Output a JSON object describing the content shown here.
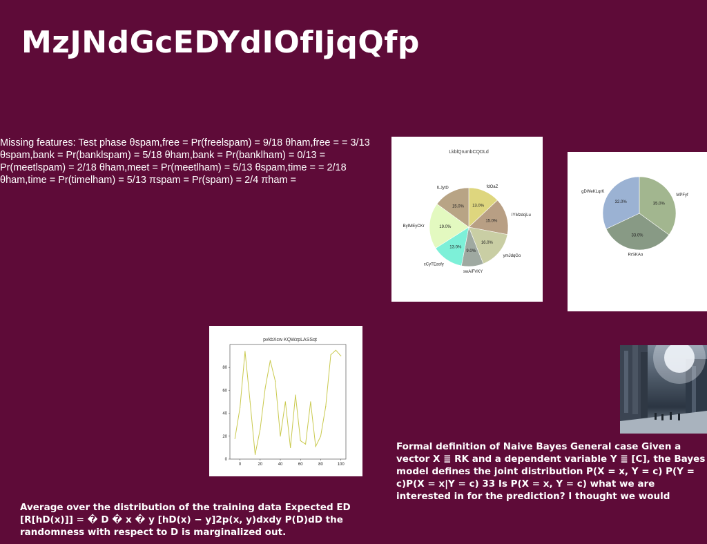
{
  "slide": {
    "title": "MzJNdGcEDYdIOfIjqQfp",
    "missing_text": "Missing features: Test phase θspam,free = Pr(freelspam) = 9/18 θham,free = = 3/13 θspam,bank = Pr(banklspam) = 5/18 θham,bank = Pr(banklham) = 0/13 = Pr(meetlspam) = 2/18 θham,meet = Pr(meetlham) = 5/13 θspam,time = = 2/18 θham,time = Pr(timelham) = 5/13 πspam = Pr(spam) = 2/4 πham =",
    "naive_bayes_text": "Formal definition of Naive Bayes General case Given a vector X ≣ RK and a dependent variable Y ≣ [C], the Bayes model defines the joint distribution P(X = x, Y = c) P(Y = c)P(X = x|Y = c) 33 Is P(X = x, Y = c) what we are interested in for the prediction? I thought we would",
    "expected_text": "Average over the distribution of the training data Expected ED [R[hD(x)]] = � D � x � y [hD(x) − y]2p(x, y)dxdy P(D)dD the randomness with respect to D is marginalized out."
  },
  "chart_data": [
    {
      "type": "pie",
      "title": "LkblQrumbCQDLd",
      "labels": [
        "fdOaZ",
        "IYMzdcjLu",
        "ymJdqGo",
        "swAiFVKY",
        "cCyTEasfy",
        "ByIMEyCKr",
        "ILJytD"
      ],
      "values": [
        13.0,
        15.0,
        16.0,
        9.0,
        13.0,
        19.0,
        15.0
      ],
      "value_labels": [
        "13.0%",
        "15.0%",
        "16.0%",
        "9.0%",
        "13.0%",
        "19.0%",
        "15.0%"
      ],
      "colors": [
        "#ded67e",
        "#b89f84",
        "#c9cea4",
        "#9fa9a1",
        "#7df0d8",
        "#e3f9c0",
        "#b8a485"
      ]
    },
    {
      "type": "pie",
      "title": "",
      "labels": [
        "MPFyf",
        "RrSKAo",
        "gDWeKLqrK"
      ],
      "values": [
        35.0,
        33.0,
        32.0
      ],
      "value_labels": [
        "35.0%",
        "33.0%",
        "32.0%"
      ],
      "colors": [
        "#a2b68f",
        "#889a85",
        "#9bb2d3"
      ]
    },
    {
      "type": "line",
      "title": "pvkbXcw KQWzpLASSqt",
      "x": [
        -5,
        0,
        5,
        10,
        15,
        20,
        25,
        30,
        35,
        40,
        45,
        50,
        55,
        60,
        65,
        70,
        75,
        80,
        85,
        90,
        95,
        100
      ],
      "y": [
        18,
        45,
        94,
        50,
        4,
        26,
        62,
        86,
        68,
        20,
        50,
        10,
        56,
        16,
        13,
        50,
        11,
        20,
        46,
        91,
        95,
        90
      ],
      "xticks": [
        "0",
        "20",
        "40",
        "60",
        "80",
        "100"
      ],
      "yticks": [
        "0",
        "20",
        "40",
        "60",
        "80"
      ],
      "xlim": [
        -10,
        105
      ],
      "ylim": [
        0,
        100
      ],
      "color": "#c9c94d"
    }
  ]
}
